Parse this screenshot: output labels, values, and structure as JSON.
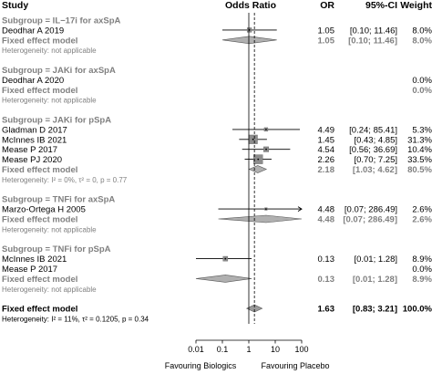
{
  "headers": {
    "study": "Study",
    "odds_ratio": "Odds Ratio",
    "or": "OR",
    "ci": "95%-CI",
    "weight": "Weight"
  },
  "axis_labels": {
    "left": "Favouring Biologics",
    "right": "Favouring Placebo"
  },
  "chart_data": {
    "type": "forest",
    "xscale": "log",
    "xticks": [
      "0.01",
      "0.1",
      "1",
      "10",
      "100"
    ],
    "xlim": [
      0.01,
      100
    ],
    "pooled_reference_line": 1.63,
    "rows": [
      {
        "kind": "subgroup",
        "label": "Subgroup = IL−17i for axSpA"
      },
      {
        "kind": "study",
        "label": "Deodhar A 2019",
        "or": 1.05,
        "lower": 0.1,
        "upper": 11.46,
        "or_text": "1.05",
        "ci_text": "[0.10; 11.46]",
        "weight_text": "8.0%",
        "weight": 8.0
      },
      {
        "kind": "fixed",
        "label": "Fixed effect model",
        "or": 1.05,
        "lower": 0.1,
        "upper": 11.46,
        "or_text": "1.05",
        "ci_text": "[0.10; 11.46]",
        "weight_text": "8.0%"
      },
      {
        "kind": "het",
        "label": "Heterogeneity: not applicable"
      },
      {
        "kind": "gap"
      },
      {
        "kind": "subgroup",
        "label": "Subgroup = JAKi for axSpA"
      },
      {
        "kind": "study",
        "label": "Deodhar A 2020",
        "or_text": "",
        "ci_text": "",
        "weight_text": "0.0%",
        "weight": 0
      },
      {
        "kind": "fixed",
        "label": "Fixed effect model",
        "or_text": "",
        "ci_text": "",
        "weight_text": "0.0%"
      },
      {
        "kind": "het",
        "label": "Heterogeneity: not applicable"
      },
      {
        "kind": "gap"
      },
      {
        "kind": "subgroup",
        "label": "Subgroup = JAKi for pSpA"
      },
      {
        "kind": "study",
        "label": "Gladman D 2017",
        "or": 4.49,
        "lower": 0.24,
        "upper": 85.41,
        "or_text": "4.49",
        "ci_text": "[0.24; 85.41]",
        "weight_text": "5.3%",
        "weight": 5.3
      },
      {
        "kind": "study",
        "label": "McInnes IB 2021",
        "or": 1.45,
        "lower": 0.43,
        "upper": 4.85,
        "or_text": "1.45",
        "ci_text": "[0.43; 4.85]",
        "weight_text": "31.3%",
        "weight": 31.3
      },
      {
        "kind": "study",
        "label": "Mease P 2017",
        "or": 4.54,
        "lower": 0.56,
        "upper": 36.69,
        "or_text": "4.54",
        "ci_text": "[0.56; 36.69]",
        "weight_text": "10.4%",
        "weight": 10.4
      },
      {
        "kind": "study",
        "label": "Mease PJ 2020",
        "or": 2.26,
        "lower": 0.7,
        "upper": 7.25,
        "or_text": "2.26",
        "ci_text": "[0.70; 7.25]",
        "weight_text": "33.5%",
        "weight": 33.5
      },
      {
        "kind": "fixed",
        "label": "Fixed effect model",
        "or": 2.18,
        "lower": 1.03,
        "upper": 4.62,
        "or_text": "2.18",
        "ci_text": "[1.03; 4.62]",
        "weight_text": "80.5%"
      },
      {
        "kind": "het",
        "label": "Heterogeneity: I² = 0%, τ² = 0, p = 0.77"
      },
      {
        "kind": "gap"
      },
      {
        "kind": "subgroup",
        "label": "Subgroup = TNFi for axSpA"
      },
      {
        "kind": "study",
        "label": "Marzo-Ortega H 2005",
        "or": 4.48,
        "lower": 0.07,
        "upper": 286.49,
        "or_text": "4.48",
        "ci_text": "[0.07; 286.49]",
        "weight_text": "2.6%",
        "weight": 2.6
      },
      {
        "kind": "fixed",
        "label": "Fixed effect model",
        "or": 4.48,
        "lower": 0.07,
        "upper": 286.49,
        "or_text": "4.48",
        "ci_text": "[0.07; 286.49]",
        "weight_text": "2.6%"
      },
      {
        "kind": "het",
        "label": "Heterogeneity: not applicable"
      },
      {
        "kind": "gap"
      },
      {
        "kind": "subgroup",
        "label": "Subgroup = TNFi for pSpA"
      },
      {
        "kind": "study",
        "label": "McInnes IB 2021",
        "or": 0.13,
        "lower": 0.01,
        "upper": 1.28,
        "or_text": "0.13",
        "ci_text": "[0.01; 1.28]",
        "weight_text": "8.9%",
        "weight": 8.9
      },
      {
        "kind": "study",
        "label": "Mease P 2017",
        "or_text": "",
        "ci_text": "",
        "weight_text": "0.0%",
        "weight": 0
      },
      {
        "kind": "fixed",
        "label": "Fixed effect model",
        "or": 0.13,
        "lower": 0.01,
        "upper": 1.28,
        "or_text": "0.13",
        "ci_text": "[0.01; 1.28]",
        "weight_text": "8.9%"
      },
      {
        "kind": "het",
        "label": "Heterogeneity: not applicable"
      },
      {
        "kind": "gap"
      },
      {
        "kind": "total",
        "label": "Fixed effect model",
        "or": 1.63,
        "lower": 0.83,
        "upper": 3.21,
        "or_text": "1.63",
        "ci_text": "[0.83; 3.21]",
        "weight_text": "100.0%"
      },
      {
        "kind": "het_total",
        "label": "Heterogeneity: I² = 11%, τ² = 0.1205, p = 0.34"
      }
    ]
  }
}
